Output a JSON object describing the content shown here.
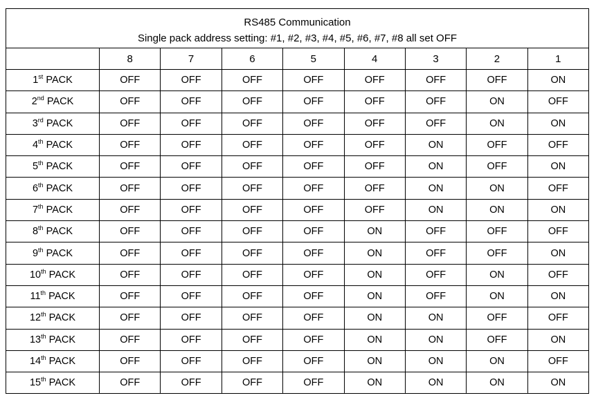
{
  "title": "RS485 Communication",
  "subtitle": "Single pack address setting: #1, #2, #3, #4, #5, #6, #7, #8 all set OFF",
  "columns": [
    "8",
    "7",
    "6",
    "5",
    "4",
    "3",
    "2",
    "1"
  ],
  "rows": [
    {
      "num": "1",
      "suffix": "st",
      "label": "PACK",
      "values": [
        "OFF",
        "OFF",
        "OFF",
        "OFF",
        "OFF",
        "OFF",
        "OFF",
        "ON"
      ]
    },
    {
      "num": "2",
      "suffix": "nd",
      "label": "PACK",
      "values": [
        "OFF",
        "OFF",
        "OFF",
        "OFF",
        "OFF",
        "OFF",
        "ON",
        "OFF"
      ]
    },
    {
      "num": "3",
      "suffix": "rd",
      "label": "PACK",
      "values": [
        "OFF",
        "OFF",
        "OFF",
        "OFF",
        "OFF",
        "OFF",
        "ON",
        "ON"
      ]
    },
    {
      "num": "4",
      "suffix": "th",
      "label": "PACK",
      "values": [
        "OFF",
        "OFF",
        "OFF",
        "OFF",
        "OFF",
        "ON",
        "OFF",
        "OFF"
      ]
    },
    {
      "num": "5",
      "suffix": "th",
      "label": "PACK",
      "values": [
        "OFF",
        "OFF",
        "OFF",
        "OFF",
        "OFF",
        "ON",
        "OFF",
        "ON"
      ]
    },
    {
      "num": "6",
      "suffix": "th",
      "label": "PACK",
      "values": [
        "OFF",
        "OFF",
        "OFF",
        "OFF",
        "OFF",
        "ON",
        "ON",
        "OFF"
      ]
    },
    {
      "num": "7",
      "suffix": "th",
      "label": "PACK",
      "values": [
        "OFF",
        "OFF",
        "OFF",
        "OFF",
        "OFF",
        "ON",
        "ON",
        "ON"
      ]
    },
    {
      "num": "8",
      "suffix": "th",
      "label": "PACK",
      "values": [
        "OFF",
        "OFF",
        "OFF",
        "OFF",
        "ON",
        "OFF",
        "OFF",
        "OFF"
      ]
    },
    {
      "num": "9",
      "suffix": "th",
      "label": "PACK",
      "values": [
        "OFF",
        "OFF",
        "OFF",
        "OFF",
        "ON",
        "OFF",
        "OFF",
        "ON"
      ]
    },
    {
      "num": "10",
      "suffix": "th",
      "label": "PACK",
      "values": [
        "OFF",
        "OFF",
        "OFF",
        "OFF",
        "ON",
        "OFF",
        "ON",
        "OFF"
      ]
    },
    {
      "num": "11",
      "suffix": "th",
      "label": "PACK",
      "values": [
        "OFF",
        "OFF",
        "OFF",
        "OFF",
        "ON",
        "OFF",
        "ON",
        "ON"
      ]
    },
    {
      "num": "12",
      "suffix": "th",
      "label": "PACK",
      "values": [
        "OFF",
        "OFF",
        "OFF",
        "OFF",
        "ON",
        "ON",
        "OFF",
        "OFF"
      ]
    },
    {
      "num": "13",
      "suffix": "th",
      "label": "PACK",
      "values": [
        "OFF",
        "OFF",
        "OFF",
        "OFF",
        "ON",
        "ON",
        "OFF",
        "ON"
      ]
    },
    {
      "num": "14",
      "suffix": "th",
      "label": "PACK",
      "values": [
        "OFF",
        "OFF",
        "OFF",
        "OFF",
        "ON",
        "ON",
        "ON",
        "OFF"
      ]
    },
    {
      "num": "15",
      "suffix": "th",
      "label": "PACK",
      "values": [
        "OFF",
        "OFF",
        "OFF",
        "OFF",
        "ON",
        "ON",
        "ON",
        "ON"
      ]
    }
  ]
}
